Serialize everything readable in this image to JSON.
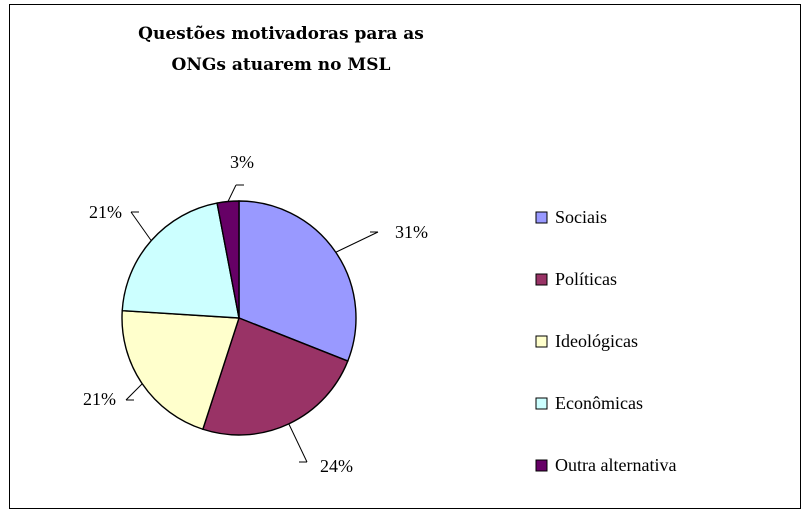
{
  "chart_data": {
    "type": "pie",
    "title_lines": [
      "Questões motivadoras para as",
      "ONGs atuarem no MSL"
    ],
    "categories": [
      "Sociais",
      "Políticas",
      "Ideológicas",
      "Econômicas",
      "Outra alternativa"
    ],
    "values": [
      31,
      24,
      21,
      21,
      3
    ],
    "labels": [
      "31%",
      "24%",
      "21%",
      "21%",
      "3%"
    ],
    "colors": [
      "#9999ff",
      "#993366",
      "#ffffcc",
      "#ccffff",
      "#660066"
    ],
    "legend_position": "right"
  }
}
